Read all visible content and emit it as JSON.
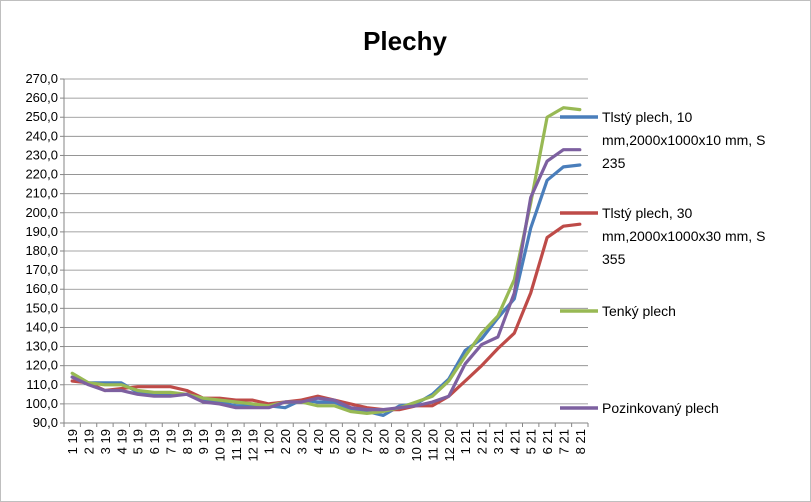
{
  "chart_data": {
    "type": "line",
    "title": "Plechy",
    "xlabel": "",
    "ylabel": "",
    "ylim": [
      90,
      270
    ],
    "y_step": 10,
    "grid": true,
    "legend_position": "right",
    "categories": [
      "1 19",
      "2 19",
      "3 19",
      "4 19",
      "5 19",
      "6 19",
      "7 19",
      "8 19",
      "9 19",
      "10 19",
      "11 19",
      "12 19",
      "1 20",
      "2 20",
      "3 20",
      "4 20",
      "5 20",
      "6 20",
      "7 20",
      "8 20",
      "9 20",
      "10 20",
      "11 20",
      "12 20",
      "1 21",
      "2 21",
      "3 21",
      "4 21",
      "5 21",
      "6 21",
      "7 21",
      "8 21"
    ],
    "y_tick_labels": [
      "90,0",
      "100,0",
      "110,0",
      "120,0",
      "130,0",
      "140,0",
      "150,0",
      "160,0",
      "170,0",
      "180,0",
      "190,0",
      "200,0",
      "210,0",
      "220,0",
      "230,0",
      "240,0",
      "250,0",
      "260,0",
      "270,0"
    ],
    "series": [
      {
        "name": "Tlstý plech, 10 mm,2000x1000x10 mm, S 235",
        "legend_lines": [
          "Tlstý plech, 10",
          "mm,2000x1000x10 mm, S",
          "235"
        ],
        "color": "#4a7ebb",
        "values": [
          114,
          111,
          111,
          111,
          106,
          105,
          105,
          105,
          102,
          101,
          99,
          99,
          99,
          98,
          102,
          101,
          101,
          97,
          96,
          94,
          99,
          100,
          105,
          113,
          128,
          134,
          145,
          155,
          192,
          217,
          224,
          225
        ]
      },
      {
        "name": "Tlstý plech, 30 mm,2000x1000x30 mm, S 355",
        "legend_lines": [
          "Tlstý plech, 30",
          "mm,2000x1000x30 mm, S",
          "355"
        ],
        "color": "#be4b48",
        "values": [
          112,
          111,
          107,
          108,
          109,
          109,
          109,
          107,
          103,
          103,
          102,
          102,
          100,
          101,
          102,
          104,
          102,
          100,
          98,
          97,
          97,
          99,
          99,
          104,
          112,
          120,
          129,
          137,
          158,
          187,
          193,
          194
        ]
      },
      {
        "name": "Tenký plech",
        "legend_lines": [
          "Tenký plech"
        ],
        "color": "#98b954",
        "values": [
          116,
          111,
          110,
          110,
          107,
          106,
          106,
          105,
          103,
          102,
          101,
          100,
          99,
          101,
          101,
          99,
          99,
          96,
          95,
          96,
          98,
          101,
          104,
          112,
          125,
          137,
          146,
          165,
          205,
          250,
          255,
          254
        ]
      },
      {
        "name": "Pozinkovaný plech",
        "legend_lines": [
          "Pozinkovaný plech"
        ],
        "color": "#7d60a0",
        "values": [
          114,
          110,
          107,
          107,
          105,
          104,
          104,
          105,
          101,
          100,
          98,
          98,
          98,
          101,
          101,
          103,
          102,
          98,
          97,
          97,
          98,
          99,
          101,
          104,
          121,
          131,
          135,
          158,
          208,
          227,
          233,
          233
        ]
      }
    ]
  }
}
